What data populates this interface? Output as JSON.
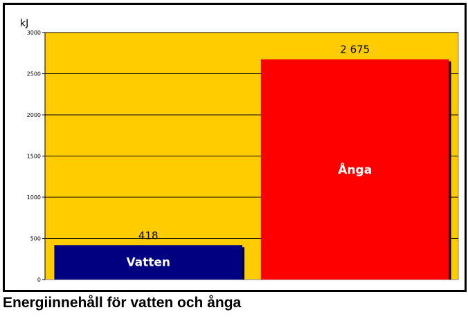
{
  "caption": "Energiinnehåll för vatten och ånga",
  "chart_data": {
    "type": "bar",
    "categories": [
      "Vatten",
      "Ånga"
    ],
    "values": [
      418,
      2675
    ],
    "value_labels": [
      "418",
      "2 675"
    ],
    "ylabel": "kJ",
    "ylim": [
      0,
      3000
    ],
    "yticks": [
      0,
      500,
      1000,
      1500,
      2000,
      2500,
      3000
    ],
    "grid": true,
    "legend": "none",
    "colors": {
      "plot_background": "#FFCC00",
      "bars": [
        "#000080",
        "#FF0000"
      ],
      "bar_label_text": "#FFFFFF",
      "shadow": "#000000"
    }
  }
}
